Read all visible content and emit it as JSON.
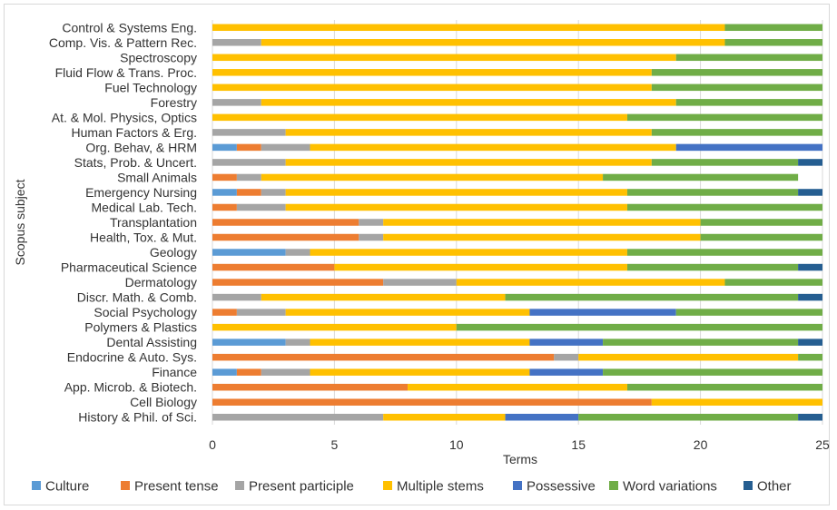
{
  "chart_data": {
    "type": "bar",
    "orientation": "horizontal",
    "stacked": true,
    "xlabel": "Terms",
    "ylabel": "Scopus subject",
    "xlim": [
      0,
      25
    ],
    "xticks": [
      0,
      5,
      10,
      15,
      20,
      25
    ],
    "grid": "vertical",
    "legend_position": "bottom",
    "categories": [
      "Control & Systems Eng.",
      "Comp. Vis. & Pattern Rec.",
      "Spectroscopy",
      "Fluid Flow & Trans. Proc.",
      "Fuel Technology",
      "Forestry",
      "At. & Mol. Physics, Optics",
      "Human Factors & Erg.",
      "Org. Behav, & HRM",
      "Stats, Prob. & Uncert.",
      "Small Animals",
      "Emergency Nursing",
      "Medical Lab. Tech.",
      "Transplantation",
      "Health, Tox. & Mut.",
      "Geology",
      "Pharmaceutical Science",
      "Dermatology",
      "Discr. Math. & Comb.",
      "Social Psychology",
      "Polymers & Plastics",
      "Dental Assisting",
      "Endocrine & Auto. Sys.",
      "Finance",
      "App. Microb. & Biotech.",
      "Cell Biology",
      "History & Phil. of Sci."
    ],
    "series": [
      {
        "name": "Culture",
        "color": "#5b9bd5",
        "values": [
          0,
          0,
          0,
          0,
          0,
          0,
          0,
          0,
          1,
          0,
          0,
          1,
          0,
          0,
          0,
          3,
          0,
          0,
          0,
          0,
          0,
          3,
          0,
          1,
          0,
          0,
          0
        ]
      },
      {
        "name": "Present tense",
        "color": "#ed7d31",
        "values": [
          0,
          0,
          0,
          0,
          0,
          0,
          0,
          0,
          1,
          0,
          1,
          1,
          1,
          6,
          6,
          0,
          5,
          7,
          0,
          1,
          0,
          0,
          14,
          1,
          8,
          18,
          0
        ]
      },
      {
        "name": "Present participle",
        "color": "#a5a5a5",
        "values": [
          0,
          2,
          0,
          0,
          0,
          2,
          0,
          3,
          2,
          3,
          1,
          1,
          2,
          1,
          1,
          1,
          0,
          3,
          2,
          2,
          0,
          1,
          1,
          2,
          0,
          0,
          7
        ]
      },
      {
        "name": "Multiple stems",
        "color": "#ffc000",
        "values": [
          21,
          19,
          19,
          18,
          18,
          17,
          17,
          15,
          15,
          15,
          14,
          14,
          14,
          13,
          13,
          13,
          12,
          11,
          10,
          10,
          10,
          9,
          9,
          9,
          9,
          7,
          5
        ]
      },
      {
        "name": "Possessive",
        "color": "#4472c4",
        "values": [
          0,
          0,
          0,
          0,
          0,
          0,
          0,
          0,
          6,
          0,
          0,
          0,
          0,
          0,
          0,
          0,
          0,
          0,
          0,
          6,
          0,
          3,
          0,
          3,
          0,
          0,
          3
        ]
      },
      {
        "name": "Word variations",
        "color": "#70ad47",
        "values": [
          4,
          4,
          6,
          7,
          7,
          6,
          8,
          7,
          0,
          6,
          8,
          7,
          8,
          5,
          5,
          8,
          7,
          4,
          12,
          6,
          15,
          8,
          1,
          9,
          8,
          0,
          9
        ]
      },
      {
        "name": "Other",
        "color": "#255e91",
        "values": [
          0,
          0,
          0,
          0,
          0,
          0,
          0,
          0,
          0,
          1,
          0,
          1,
          0,
          0,
          0,
          0,
          1,
          0,
          1,
          0,
          0,
          1,
          0,
          0,
          0,
          0,
          1
        ]
      }
    ]
  }
}
